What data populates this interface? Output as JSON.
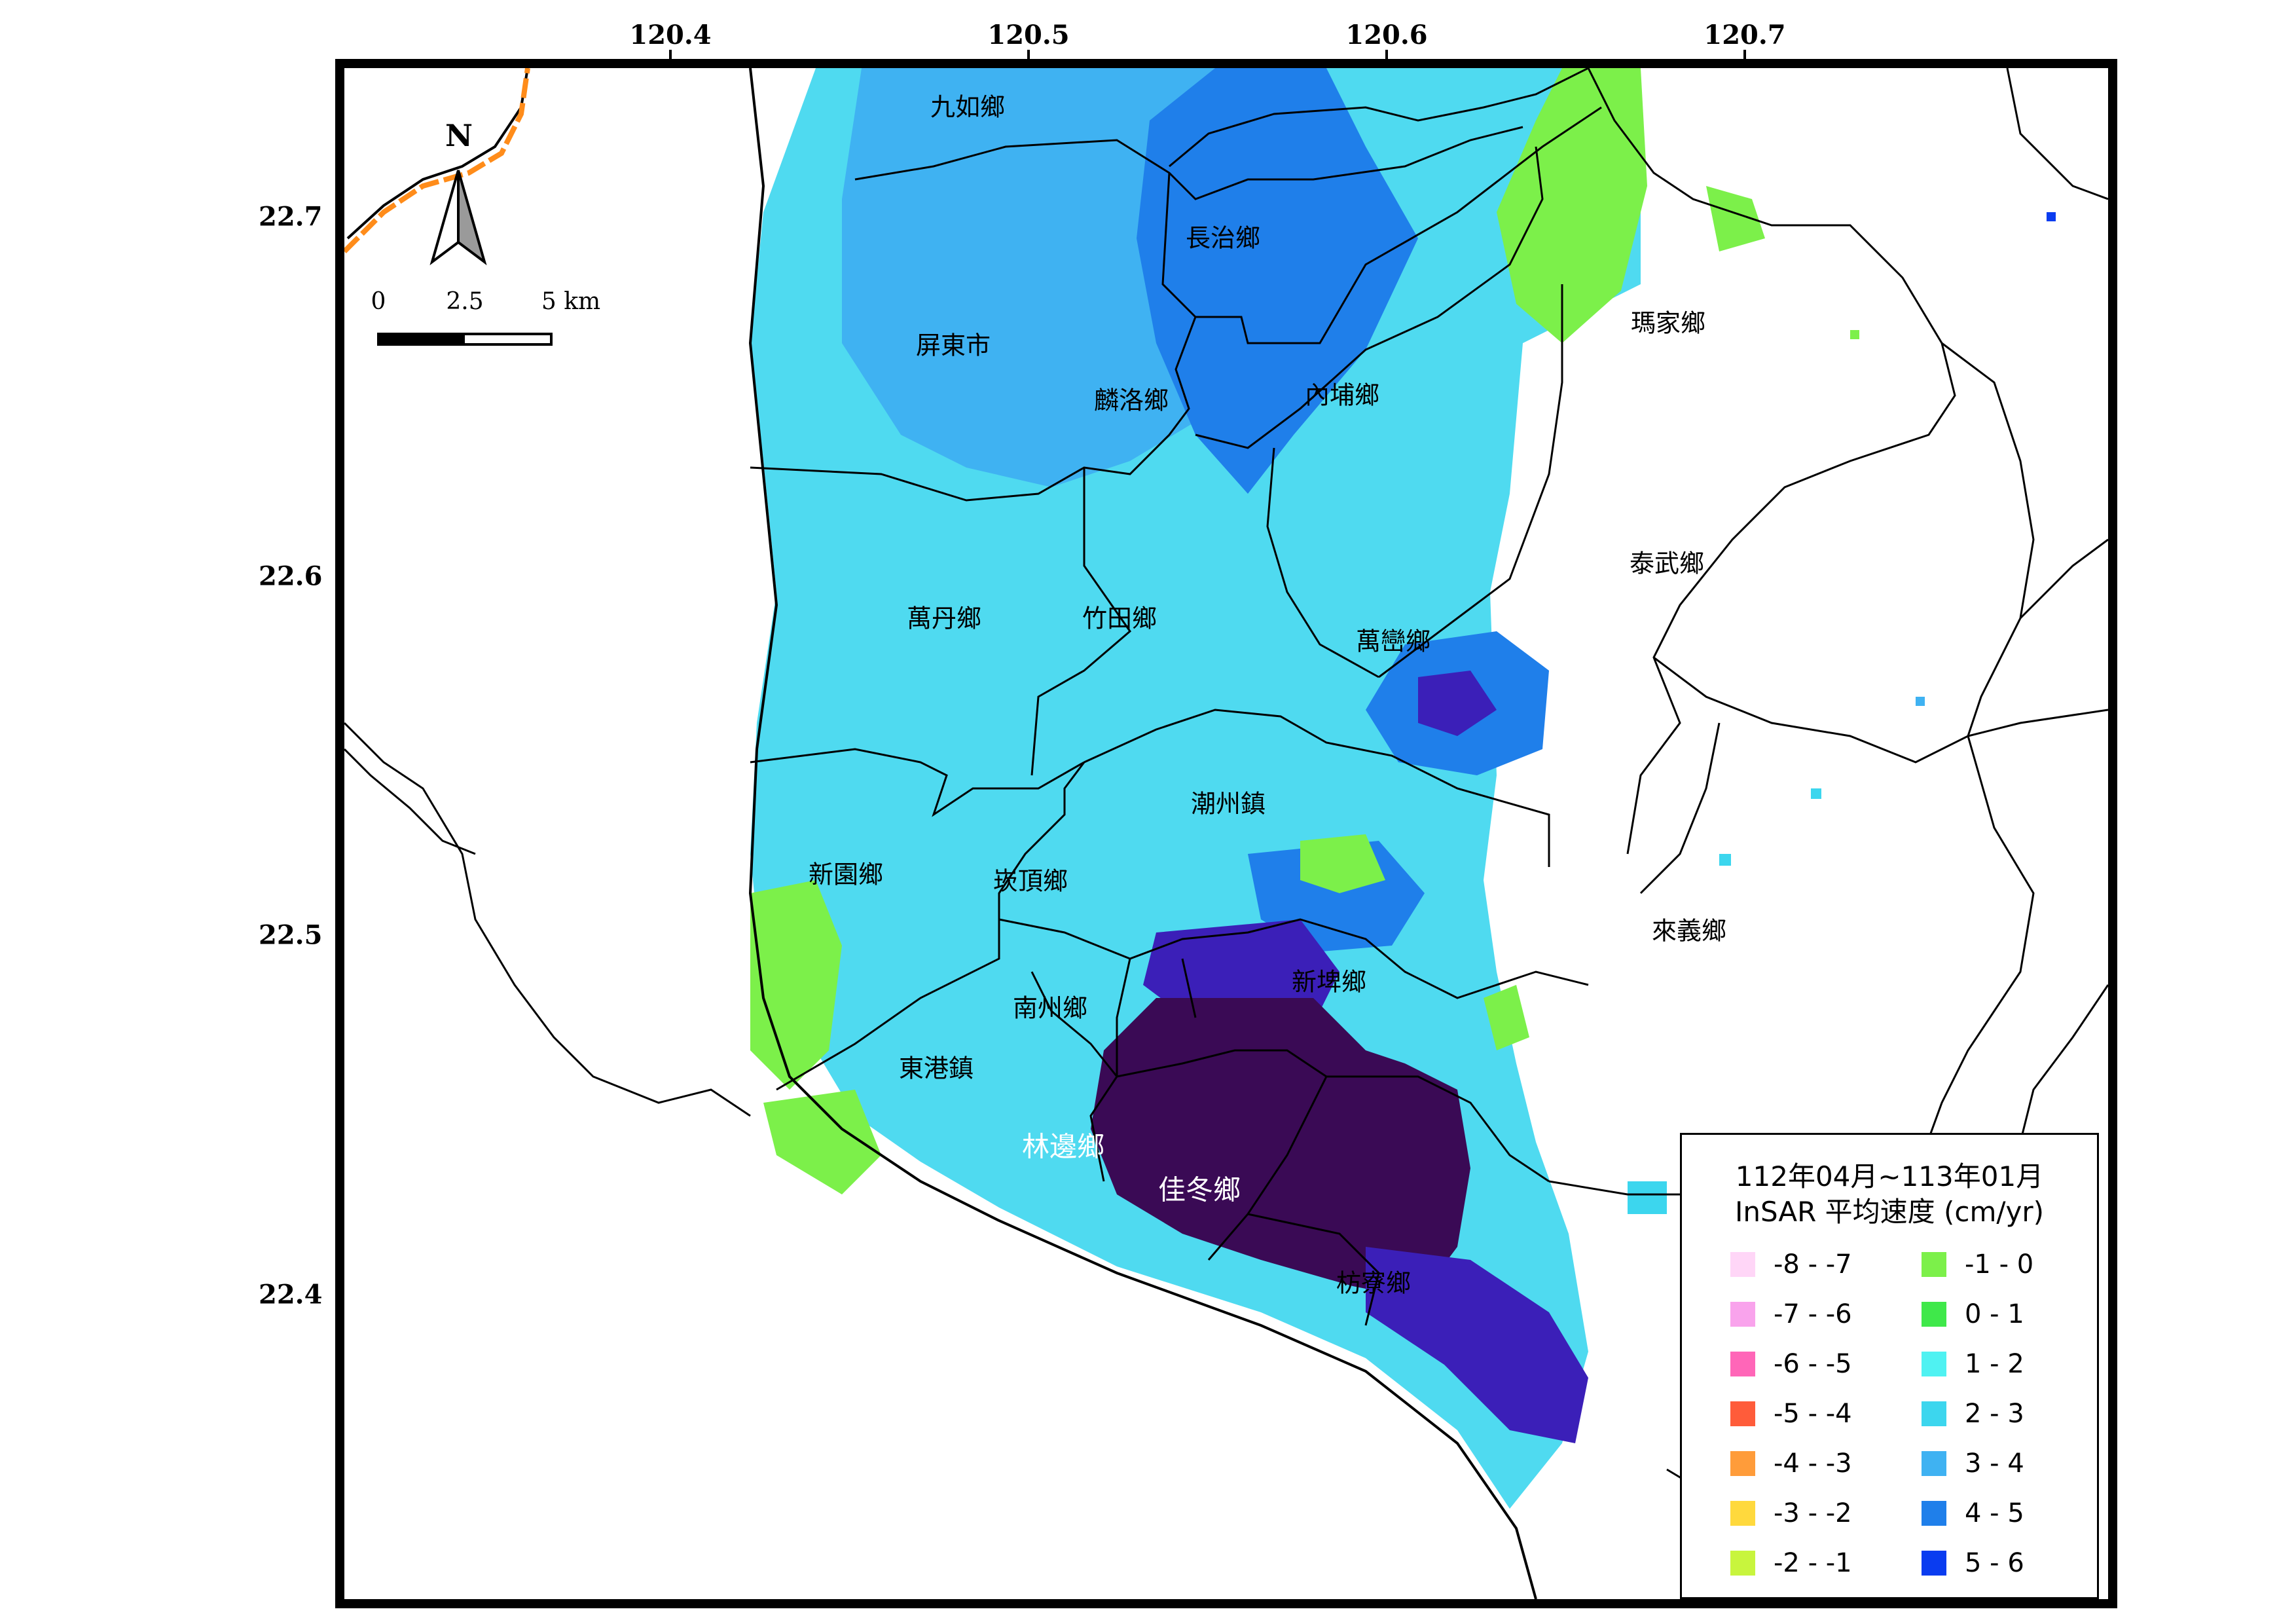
{
  "map": {
    "longitude_ticks": [
      "120.4",
      "120.5",
      "120.6",
      "120.7"
    ],
    "latitude_ticks": [
      "22.7",
      "22.6",
      "22.5",
      "22.4"
    ]
  },
  "compass": {
    "north_label": "N",
    "icon": "north-arrow-icon"
  },
  "scale_bar": {
    "labels": [
      "0",
      "2.5",
      "5 km"
    ]
  },
  "townships": [
    {
      "name": "九如鄉"
    },
    {
      "name": "長治鄉"
    },
    {
      "name": "屏東市"
    },
    {
      "name": "麟洛鄉"
    },
    {
      "name": "內埔鄉"
    },
    {
      "name": "瑪家鄉"
    },
    {
      "name": "泰武鄉"
    },
    {
      "name": "萬丹鄉"
    },
    {
      "name": "竹田鄉"
    },
    {
      "name": "萬巒鄉"
    },
    {
      "name": "潮州鎮"
    },
    {
      "name": "新園鄉"
    },
    {
      "name": "崁頂鄉"
    },
    {
      "name": "來義鄉"
    },
    {
      "name": "南州鄉"
    },
    {
      "name": "新埤鄉"
    },
    {
      "name": "東港鎮"
    },
    {
      "name": "林邊鄉"
    },
    {
      "name": "佳冬鄉"
    },
    {
      "name": "枋寮鄉"
    }
  ],
  "legend": {
    "title_line1": "112年04月~113年01月",
    "title_line2": "InSAR 平均速度 (cm/yr)",
    "items": [
      {
        "label": "-8 - -7",
        "color": "#ffd6f7"
      },
      {
        "label": "-7 - -6",
        "color": "#f9a3ec"
      },
      {
        "label": "-6 - -5",
        "color": "#ff66b8"
      },
      {
        "label": "-5 - -4",
        "color": "#ff5c3a"
      },
      {
        "label": "-4 - -3",
        "color": "#ff9c3a"
      },
      {
        "label": "-3 - -2",
        "color": "#ffd93d"
      },
      {
        "label": "-2 - -1",
        "color": "#c8f53d"
      },
      {
        "label": "-1 - 0",
        "color": "#7cf04a"
      },
      {
        "label": "0 - 1",
        "color": "#3fe84a"
      },
      {
        "label": "1 - 2",
        "color": "#4ff2f2"
      },
      {
        "label": "2 - 3",
        "color": "#3cd6ee"
      },
      {
        "label": "3 - 4",
        "color": "#3fb2f2"
      },
      {
        "label": "4 - 5",
        "color": "#1f7fea"
      },
      {
        "label": "5 - 6",
        "color": "#0a3cf0"
      }
    ],
    "extra_colors": {
      "subsidence_max": "#3a0a55",
      "deep_blue": "#3b1fb8"
    }
  }
}
